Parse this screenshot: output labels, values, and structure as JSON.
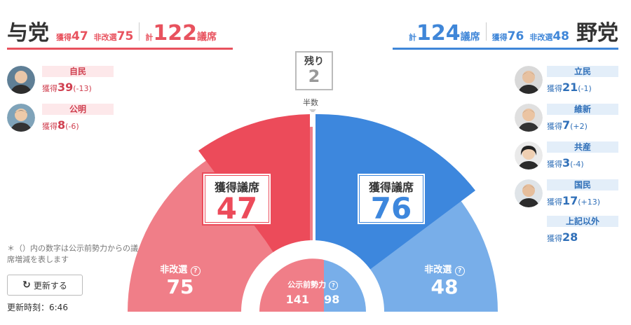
{
  "ruling": {
    "name": "与党",
    "gained_label": "獲得",
    "gained": "47",
    "noncontest_label": "非改選",
    "noncontest": "75",
    "total_prefix": "計",
    "total": "122",
    "total_suffix": "議席",
    "color": "#e8525e",
    "parties": [
      {
        "name": "自民",
        "gain_label": "獲得",
        "gain": "39",
        "change": "(-13)"
      },
      {
        "name": "公明",
        "gain_label": "獲得",
        "gain": "8",
        "change": "(-6)"
      }
    ]
  },
  "opposition": {
    "name": "野党",
    "gained_label": "獲得",
    "gained": "76",
    "noncontest_label": "非改選",
    "noncontest": "48",
    "total_prefix": "計",
    "total": "124",
    "total_suffix": "議席",
    "color": "#3f86d8",
    "parties": [
      {
        "name": "立民",
        "gain_label": "獲得",
        "gain": "21",
        "change": "(-1)"
      },
      {
        "name": "維新",
        "gain_label": "獲得",
        "gain": "7",
        "change": "(+2)"
      },
      {
        "name": "共産",
        "gain_label": "獲得",
        "gain": "3",
        "change": "(-4)"
      },
      {
        "name": "国民",
        "gain_label": "獲得",
        "gain": "17",
        "change": "(+13)"
      },
      {
        "name": "上記以外",
        "gain_label": "獲得",
        "gain": "28",
        "change": ""
      }
    ]
  },
  "remaining": {
    "label": "残り",
    "value": "2"
  },
  "half_label": "半数",
  "chart": {
    "gained_box_label": "獲得議席",
    "noncontest_label": "非改選",
    "help_icon": "help-circle-icon",
    "pre_election_label": "公示前勢力",
    "pre_election_ruling": "141",
    "pre_election_opposition": "98"
  },
  "note": "＊（）内の数字は公示前勢力からの議席増減を表します",
  "refresh_label": "更新する",
  "refresh_icon": "refresh-icon",
  "updated_label": "更新時刻：6:46"
}
